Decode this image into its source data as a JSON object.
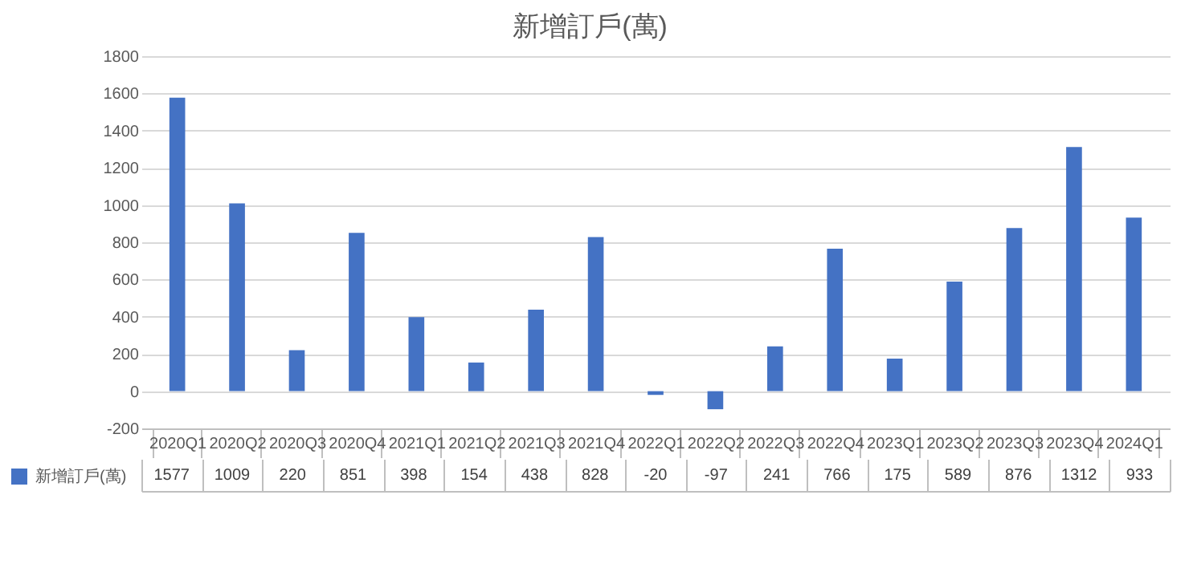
{
  "chart_data": {
    "type": "bar",
    "title": "新增訂戶(萬)",
    "categories": [
      "2020Q1",
      "2020Q2",
      "2020Q3",
      "2020Q4",
      "2021Q1",
      "2021Q2",
      "2021Q3",
      "2021Q4",
      "2022Q1",
      "2022Q2",
      "2022Q3",
      "2022Q4",
      "2023Q1",
      "2023Q2",
      "2023Q3",
      "2023Q4",
      "2024Q1"
    ],
    "series": [
      {
        "name": "新增訂戶(萬)",
        "color": "#4472c4",
        "values": [
          1577,
          1009,
          220,
          851,
          398,
          154,
          438,
          828,
          -20,
          -97,
          241,
          766,
          175,
          589,
          876,
          1312,
          933
        ]
      }
    ],
    "ylim": [
      -200,
      1800
    ],
    "yticks": [
      -200,
      0,
      200,
      400,
      600,
      800,
      1000,
      1200,
      1400,
      1600,
      1800
    ],
    "grid": "y",
    "data_labels": true,
    "legend": "bottom left"
  }
}
